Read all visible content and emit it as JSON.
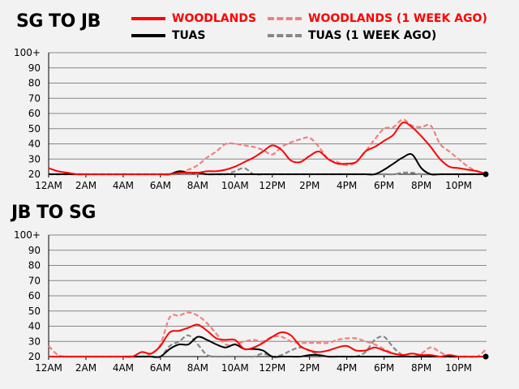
{
  "legend": {
    "woodlands": "WOODLANDS",
    "woodlands_week": "WOODLANDS (1 WEEK AGO)",
    "tuas": "TUAS",
    "tuas_week": "TUAS (1 WEEK AGO)",
    "colors": {
      "woodlands": "#ff0000",
      "woodlands_week": "#f08080",
      "tuas": "#000000",
      "tuas_week": "#888888"
    }
  },
  "chart_data": [
    {
      "type": "line",
      "title": "SG TO JB",
      "x_ticks": [
        "12AM",
        "2AM",
        "4AM",
        "6AM",
        "8AM",
        "10AM",
        "12PM",
        "2PM",
        "4PM",
        "6PM",
        "8PM",
        "10PM"
      ],
      "y_ticks": [
        "20",
        "30",
        "40",
        "50",
        "60",
        "70",
        "80",
        "90",
        "100+"
      ],
      "ylim": [
        20,
        100
      ],
      "x_hours": [
        0,
        0.5,
        1,
        1.5,
        2,
        2.5,
        3,
        3.5,
        4,
        4.5,
        5,
        5.5,
        6,
        6.5,
        7,
        7.5,
        8,
        8.5,
        9,
        9.5,
        10,
        10.5,
        11,
        11.5,
        12,
        12.5,
        13,
        13.5,
        14,
        14.5,
        15,
        15.5,
        16,
        16.5,
        17,
        17.5,
        18,
        18.5,
        19,
        19.5,
        20,
        20.5,
        21,
        21.5,
        22,
        22.5,
        23,
        23.5
      ],
      "series": [
        {
          "name": "WOODLANDS (1 WEEK AGO)",
          "key": "woodlands_week",
          "dashed": true,
          "values": [
            20,
            20,
            20,
            20,
            20,
            20,
            20,
            20,
            20,
            20,
            20,
            20,
            20,
            20,
            21,
            23,
            26,
            31,
            35,
            40,
            40,
            39,
            38,
            36,
            33,
            38,
            41,
            43,
            44,
            38,
            30,
            28,
            26,
            28,
            35,
            43,
            50,
            51,
            56,
            52,
            51,
            52,
            40,
            35,
            30,
            25,
            22,
            20
          ]
        },
        {
          "name": "TUAS (1 WEEK AGO)",
          "key": "tuas_week",
          "dashed": true,
          "values": [
            20,
            20,
            20,
            20,
            20,
            20,
            20,
            20,
            20,
            20,
            20,
            20,
            20,
            20,
            20,
            20,
            20,
            20,
            20,
            20,
            22,
            24,
            20,
            20,
            20,
            20,
            20,
            20,
            20,
            20,
            20,
            20,
            20,
            20,
            20,
            20,
            20,
            20,
            21,
            21,
            20,
            20,
            20,
            20,
            20,
            20,
            20,
            20
          ]
        },
        {
          "name": "TUAS",
          "key": "tuas",
          "dashed": false,
          "values": [
            20,
            20,
            20,
            20,
            20,
            20,
            20,
            20,
            20,
            20,
            20,
            20,
            20,
            20,
            22,
            21,
            21,
            20,
            20,
            20,
            20,
            20,
            20,
            20,
            20,
            20,
            20,
            20,
            20,
            20,
            20,
            20,
            20,
            20,
            20,
            20,
            23,
            27,
            31,
            33,
            24,
            20,
            20,
            20,
            20,
            20,
            20,
            20
          ]
        },
        {
          "name": "WOODLANDS",
          "key": "woodlands",
          "dashed": false,
          "values": [
            24,
            22,
            21,
            20,
            20,
            20,
            20,
            20,
            20,
            20,
            20,
            20,
            20,
            20,
            21,
            21,
            21,
            22,
            22,
            23,
            25,
            28,
            31,
            35,
            39,
            36,
            29,
            28,
            32,
            35,
            30,
            27,
            27,
            28,
            35,
            38,
            42,
            46,
            54,
            51,
            45,
            38,
            30,
            25,
            24,
            23,
            22,
            20
          ]
        }
      ]
    },
    {
      "type": "line",
      "title": "JB TO SG",
      "x_ticks": [
        "12AM",
        "2AM",
        "4AM",
        "6AM",
        "8AM",
        "10AM",
        "12PM",
        "2PM",
        "4PM",
        "6PM",
        "8PM",
        "10PM"
      ],
      "y_ticks": [
        "20",
        "30",
        "40",
        "50",
        "60",
        "70",
        "80",
        "90",
        "100+"
      ],
      "ylim": [
        20,
        100
      ],
      "x_hours": [
        0,
        0.5,
        1,
        1.5,
        2,
        2.5,
        3,
        3.5,
        4,
        4.5,
        5,
        5.5,
        6,
        6.5,
        7,
        7.5,
        8,
        8.5,
        9,
        9.5,
        10,
        10.5,
        11,
        11.5,
        12,
        12.5,
        13,
        13.5,
        14,
        14.5,
        15,
        15.5,
        16,
        16.5,
        17,
        17.5,
        18,
        18.5,
        19,
        19.5,
        20,
        20.5,
        21,
        21.5,
        22,
        22.5,
        23,
        23.5
      ],
      "series": [
        {
          "name": "WOODLANDS (1 WEEK AGO)",
          "key": "woodlands_week",
          "dashed": true,
          "values": [
            27,
            21,
            20,
            20,
            20,
            20,
            20,
            20,
            20,
            20,
            20,
            22,
            28,
            46,
            47,
            49,
            47,
            42,
            35,
            28,
            28,
            30,
            31,
            30,
            33,
            33,
            30,
            29,
            29,
            29,
            29,
            31,
            32,
            32,
            30,
            28,
            25,
            22,
            21,
            20,
            22,
            26,
            23,
            20,
            20,
            20,
            20,
            25
          ]
        },
        {
          "name": "TUAS (1 WEEK AGO)",
          "key": "tuas_week",
          "dashed": true,
          "values": [
            20,
            20,
            20,
            20,
            20,
            20,
            20,
            20,
            20,
            20,
            20,
            20,
            20,
            27,
            30,
            34,
            28,
            21,
            20,
            20,
            20,
            20,
            20,
            22,
            20,
            21,
            24,
            26,
            24,
            21,
            20,
            20,
            20,
            20,
            23,
            31,
            33,
            26,
            21,
            20,
            20,
            20,
            20,
            20,
            20,
            20,
            20,
            20
          ]
        },
        {
          "name": "TUAS",
          "key": "tuas",
          "dashed": false,
          "values": [
            20,
            20,
            20,
            20,
            20,
            20,
            20,
            20,
            20,
            20,
            20,
            20,
            20,
            25,
            28,
            28,
            33,
            31,
            28,
            26,
            28,
            25,
            25,
            24,
            20,
            20,
            20,
            20,
            21,
            21,
            20,
            20,
            20,
            20,
            20,
            20,
            20,
            20,
            20,
            20,
            20,
            20,
            20,
            20,
            20,
            20,
            20,
            20
          ]
        },
        {
          "name": "WOODLANDS",
          "key": "woodlands",
          "dashed": false,
          "values": [
            20,
            20,
            20,
            20,
            20,
            20,
            20,
            20,
            20,
            20,
            23,
            22,
            27,
            36,
            37,
            39,
            41,
            37,
            32,
            31,
            31,
            25,
            26,
            29,
            33,
            36,
            34,
            27,
            24,
            23,
            24,
            26,
            27,
            24,
            24,
            26,
            24,
            22,
            21,
            22,
            21,
            21,
            20,
            21,
            20,
            20,
            20,
            20
          ]
        }
      ]
    }
  ]
}
